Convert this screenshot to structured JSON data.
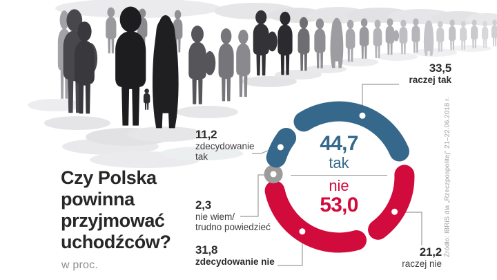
{
  "headline": {
    "lines": [
      "Czy Polska",
      "powinna",
      "przyjmować",
      "uchodźców?"
    ],
    "unit_note": "w proc."
  },
  "source_note": "Źródło: IBRiS dla „Rzeczpospolitej” 21–22.06.2018 r.",
  "colors": {
    "yes_blue": "#36688B",
    "no_red": "#D10B3C",
    "neutral_gray": "#9C9C9C",
    "leader_line": "#9B9B9B",
    "headline_text": "#272727",
    "muted_text": "#8D8D8D"
  },
  "chart_data": {
    "type": "pie",
    "title": "Czy Polska powinna przyjmować uchodźców?",
    "unit": "proc.",
    "legend_position": "callouts",
    "start_angle_deg": -43,
    "segments": [
      {
        "id": "raczej-tak",
        "label": "raczej tak",
        "value": 33.5,
        "group": "tak",
        "color": "#36688B",
        "dot_angle": 21
      },
      {
        "id": "raczej-nie",
        "label": "raczej nie",
        "value": 21.2,
        "group": "nie",
        "color": "#D10B3C",
        "dot_angle": 122
      },
      {
        "id": "zdecydowanie-nie",
        "label": "zdecydowanie nie",
        "value": 31.8,
        "group": "nie",
        "color": "#D10B3C",
        "dot_angle": 214
      },
      {
        "id": "nie-wiem",
        "label": "nie wiem/trudno powiedzieć",
        "value": 2.3,
        "group": "neutral",
        "color": "#9C9C9C",
        "dot_angle": 272.5
      },
      {
        "id": "zdecydowanie-tak",
        "label": "zdecydowanie tak",
        "value": 11.2,
        "group": "tak",
        "color": "#36688B",
        "dot_angle": 297
      }
    ],
    "totals": {
      "tak": 44.7,
      "nie": 53.0
    },
    "center": {
      "tak_value": "44,7",
      "tak_label": "tak",
      "nie_label": "nie",
      "nie_value": "53,0"
    },
    "callouts": {
      "raczej_tak": {
        "value": "33,5",
        "label": "raczej tak"
      },
      "zdecydowanie_tak": {
        "value": "11,2",
        "label_line1": "zdecydowanie",
        "label_line2": "tak"
      },
      "nie_wiem": {
        "value": "2,3",
        "label_line1": "nie wiem/",
        "label_line2": "trudno powiedzieć"
      },
      "zdecydowanie_nie": {
        "value": "31,8",
        "label": "zdecydowanie nie"
      },
      "raczej_nie": {
        "value": "21,2",
        "label": "raczej nie"
      }
    }
  }
}
